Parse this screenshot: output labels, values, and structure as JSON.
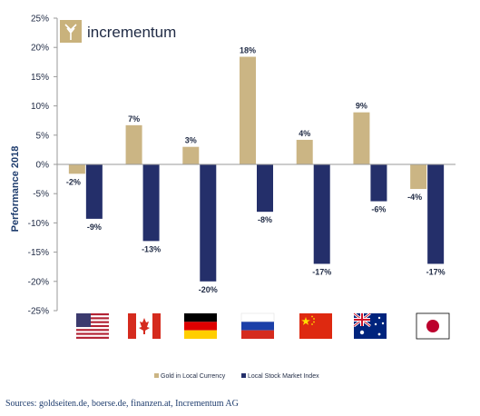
{
  "brand": {
    "name": "incrementum",
    "logo_icon": "tree-logo-icon"
  },
  "source": "Sources: goldseiten.de, boerse.de, finanzen.at, Incrementum AG",
  "colors": {
    "gold": "#cbb584",
    "navy": "#242f6a",
    "text": "#1f2a44",
    "axis": "#9a9a9a"
  },
  "chart_data": {
    "type": "bar",
    "title": "",
    "xlabel": "",
    "ylabel": "Performance 2018",
    "ylim": [
      -25,
      25
    ],
    "yticks": [
      25,
      20,
      15,
      10,
      5,
      0,
      -5,
      -10,
      -15,
      -20,
      -25
    ],
    "ytick_labels": [
      "25%",
      "20%",
      "15%",
      "10%",
      "5%",
      "0%",
      "-5%",
      "-10%",
      "-15%",
      "-20%",
      "-25%"
    ],
    "grid": false,
    "legend": "bottom",
    "categories": [
      "United States",
      "Canada",
      "Germany",
      "Russia",
      "China",
      "Australia",
      "Japan"
    ],
    "category_icons": [
      "us-flag-icon",
      "canada-flag-icon",
      "germany-flag-icon",
      "russia-flag-icon",
      "china-flag-icon",
      "australia-flag-icon",
      "japan-flag-icon"
    ],
    "series": [
      {
        "name": "Gold in Local Currency",
        "color": "#cbb584",
        "values": [
          -1.6,
          6.7,
          3.0,
          18.4,
          4.2,
          8.9,
          -4.2
        ],
        "labels": [
          "-2%",
          "7%",
          "3%",
          "18%",
          "4%",
          "9%",
          "-4%"
        ]
      },
      {
        "name": "Local Stock Market Index",
        "color": "#242f6a",
        "values": [
          -9.3,
          -13.1,
          -20.0,
          -8.1,
          -17.0,
          -6.3,
          -17.0
        ],
        "labels": [
          "-9%",
          "-13%",
          "-20%",
          "-8%",
          "-17%",
          "-6%",
          "-17%"
        ]
      }
    ]
  }
}
